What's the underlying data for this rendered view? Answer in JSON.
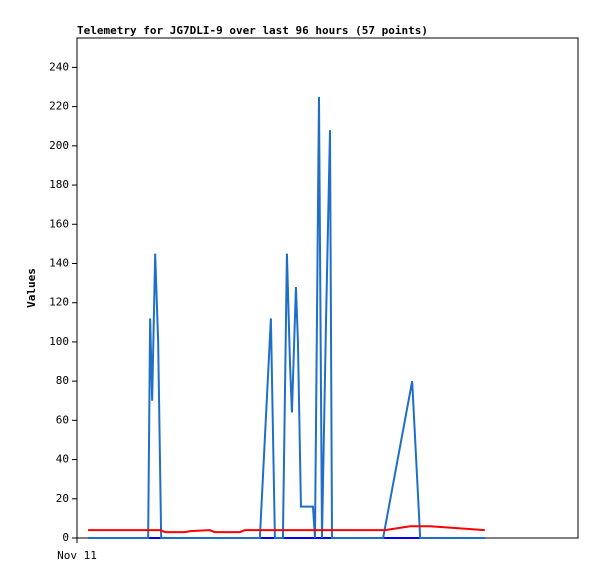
{
  "chart_data": {
    "type": "line",
    "title": "Telemetry for JG7DLI-9 over last 96 hours (57 points)",
    "y_label": "Values",
    "xlim": [
      0,
      100
    ],
    "xticks": [
      {
        "value": 0,
        "label": "Nov 11"
      }
    ],
    "ylim": [
      0,
      255
    ],
    "yticks": [
      0,
      20,
      40,
      60,
      80,
      100,
      120,
      140,
      160,
      180,
      200,
      220,
      240
    ],
    "series": [
      {
        "color": "#0000ff",
        "x": [
          2.2,
          81.4
        ],
        "values": [
          0,
          0
        ]
      },
      {
        "color": "#1f6fc8",
        "x": [
          2.2,
          14.2,
          14.6,
          15.0,
          15.6,
          16.2,
          16.8,
          36.5,
          38.7,
          39.5,
          41.1,
          41.9,
          42.5,
          42.9,
          43.7,
          44.1,
          44.7,
          47.1,
          47.5,
          48.3,
          48.9,
          49.7,
          50.5,
          50.9,
          61.1,
          66.9,
          68.5,
          81.4
        ],
        "values": [
          0,
          0,
          112,
          70,
          145,
          100,
          0,
          0,
          112,
          0,
          0,
          145,
          90,
          64,
          128,
          100,
          16,
          16,
          0,
          225,
          0,
          110,
          208,
          0,
          0,
          80,
          0,
          0
        ]
      },
      {
        "color": "#ff0000",
        "x": [
          2.2,
          16.6,
          17.6,
          21.6,
          22.6,
          26.5,
          27.5,
          32.5,
          33.5,
          61.5,
          66.5,
          70.5,
          81.4
        ],
        "values": [
          4,
          4,
          3,
          3,
          3.5,
          4,
          3,
          3,
          4,
          4,
          6,
          6,
          4
        ]
      }
    ]
  }
}
